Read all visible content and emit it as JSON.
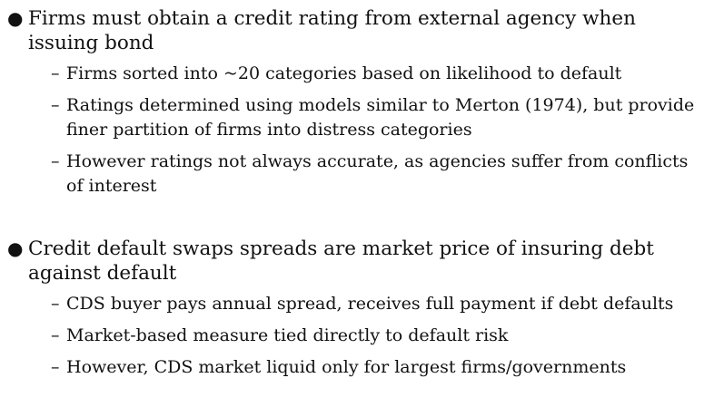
{
  "bullets": [
    {
      "text": "Firms must obtain a credit rating from external agency when issuing bond",
      "subitems": [
        "Firms sorted into ~20 categories based on likelihood to default",
        "Ratings determined using models similar to Merton (1974), but provide finer partition of firms into distress categories",
        "However ratings not always accurate, as agencies suffer from conflicts of interest"
      ]
    },
    {
      "text": "Credit default swaps spreads are market price of insuring debt against default",
      "subitems": [
        "CDS buyer pays annual spread, receives full payment if debt defaults",
        "Market-based measure tied directly to default risk",
        "However, CDS market liquid only for largest firms/governments"
      ]
    }
  ],
  "markers": {
    "bullet": "●",
    "dash": "–"
  }
}
